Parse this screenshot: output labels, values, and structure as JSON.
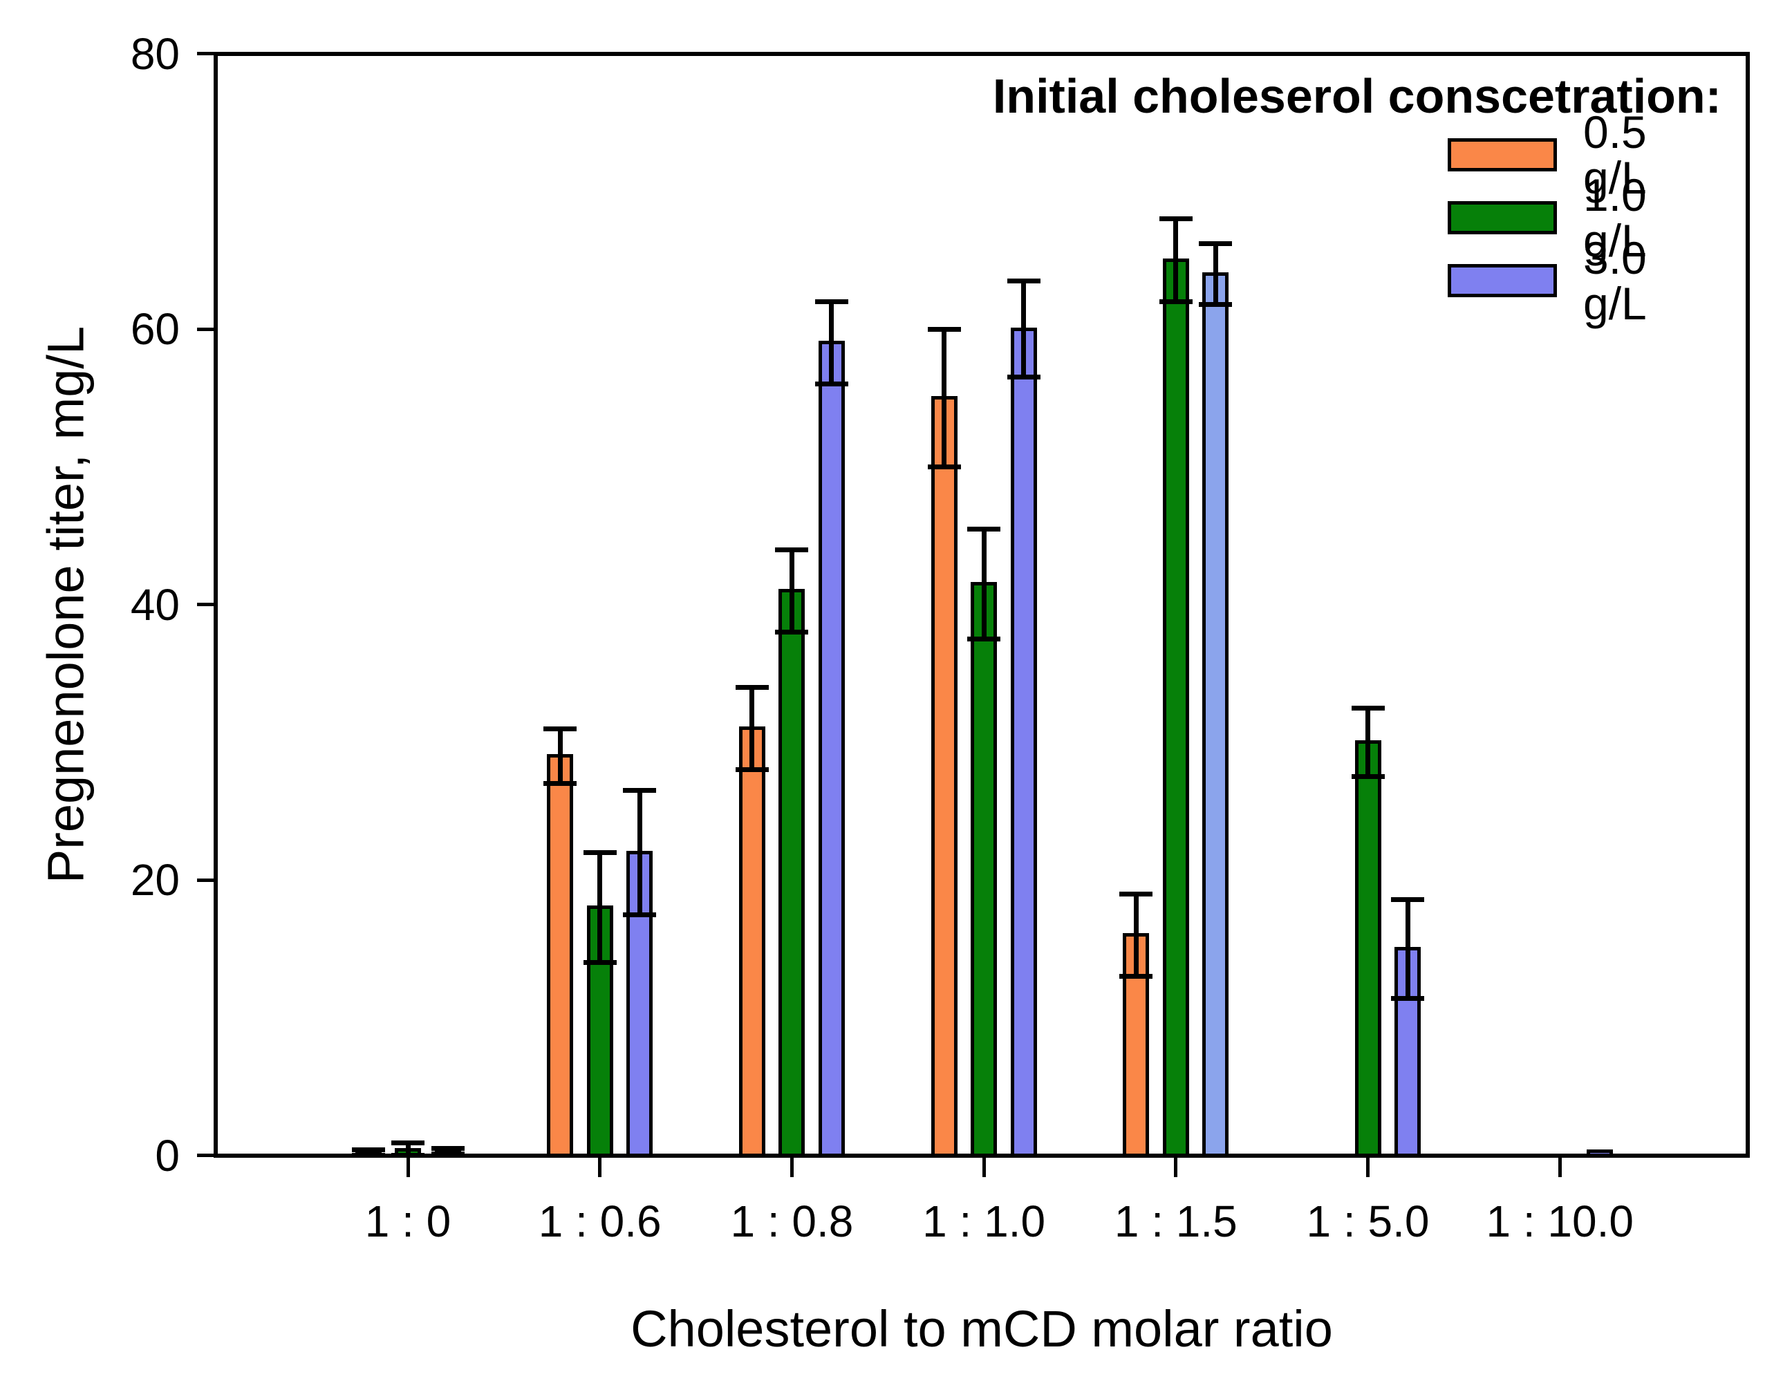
{
  "chart_data": {
    "type": "bar",
    "title": "",
    "xlabel": "Cholesterol to mCD molar ratio",
    "ylabel": "Pregnenolone titer, mg/L",
    "categories": [
      "1 : 0",
      "1 : 0.6",
      "1 : 0.8",
      "1 : 1.0",
      "1 : 1.5",
      "1 : 5.0",
      "1 : 10.0"
    ],
    "y_ticks": [
      0,
      20,
      40,
      60,
      80
    ],
    "ylim": [
      0,
      80
    ],
    "grid": false,
    "legend_title": "Initial choleserol conscetration:",
    "legend_position": "top-right",
    "error_bars": "symmetric, capped, drawn above and below bar top",
    "colors": {
      "axis": "#000000",
      "background": "#ffffff"
    },
    "series": [
      {
        "name": "0.5 g/L",
        "color": "#FA8748",
        "values": [
          0.2,
          29,
          31,
          55,
          16,
          null,
          null
        ],
        "errors": [
          0.2,
          2,
          3,
          5,
          3,
          null,
          null
        ]
      },
      {
        "name": "1.0 g/L",
        "color": "#068009",
        "values": [
          0.4,
          18,
          41,
          41.5,
          65,
          30,
          null
        ],
        "errors": [
          0.5,
          4,
          3,
          4,
          3,
          2.5,
          null
        ]
      },
      {
        "name": "3.0 g/L",
        "color": "#7F80F0",
        "values": [
          0.3,
          22,
          59,
          60,
          64,
          15,
          0.3
        ],
        "errors": [
          0.2,
          4.5,
          3,
          3.5,
          2.2,
          3.6,
          0
        ],
        "color_overrides": {
          "4": "#8BA4EC"
        }
      }
    ]
  }
}
